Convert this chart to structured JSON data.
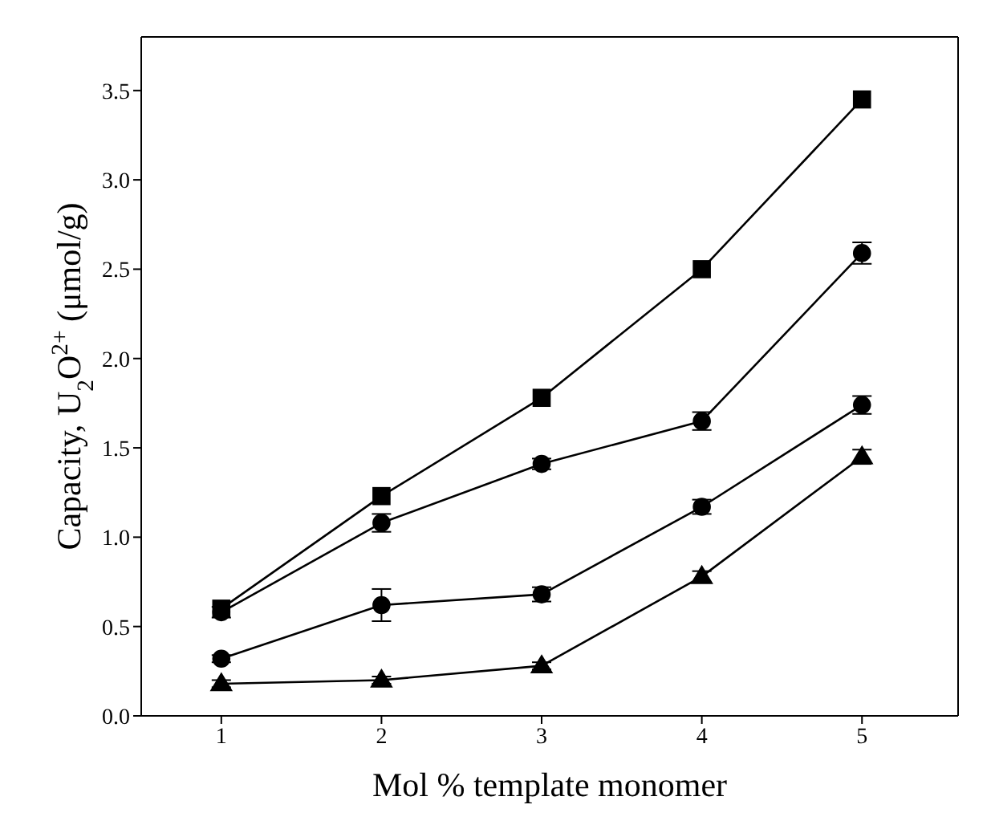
{
  "chart_data": {
    "type": "line",
    "xlabel": "Mol % template monomer",
    "ylabel": "Capacity, U$_{2}$O$^{2+}$ (μmol/g)",
    "x": [
      1,
      2,
      3,
      4,
      5
    ],
    "xlim": [
      0.5,
      5.6
    ],
    "xticks": [
      1,
      2,
      3,
      4,
      5
    ],
    "ylim": [
      0,
      3.8
    ],
    "yticks": [
      {
        "value": 0,
        "label": "0.0"
      },
      {
        "value": 0.5,
        "label": "0.5"
      },
      {
        "value": 1,
        "label": "1.0"
      },
      {
        "value": 1.5,
        "label": "1.5"
      },
      {
        "value": 2,
        "label": "2.0"
      },
      {
        "value": 2.5,
        "label": "2.5"
      },
      {
        "value": 3,
        "label": "3.0"
      },
      {
        "value": 3.5,
        "label": "3.5"
      }
    ],
    "line_style": "solid",
    "series": [
      {
        "color": "#000000",
        "marker": "square",
        "values": [
          0.6,
          1.23,
          1.78,
          2.5,
          3.45
        ]
      },
      {
        "color": "#000000",
        "marker": "circle",
        "values": [
          0.58,
          1.08,
          1.41,
          1.65,
          2.59
        ],
        "errors": [
          0.03,
          0.05,
          0.03,
          0.05,
          0.06
        ]
      },
      {
        "color": "#000000",
        "marker": "circle",
        "values": [
          0.32,
          0.62,
          0.68,
          1.17,
          1.74
        ],
        "errors": [
          0.02,
          0.09,
          0.04,
          0.04,
          0.05
        ]
      },
      {
        "color": "#000000",
        "marker": "triangle",
        "values": [
          0.18,
          0.2,
          0.28,
          0.78,
          1.45
        ],
        "errors": [
          0.02,
          0.02,
          0.02,
          0.03,
          0.04
        ]
      }
    ]
  }
}
